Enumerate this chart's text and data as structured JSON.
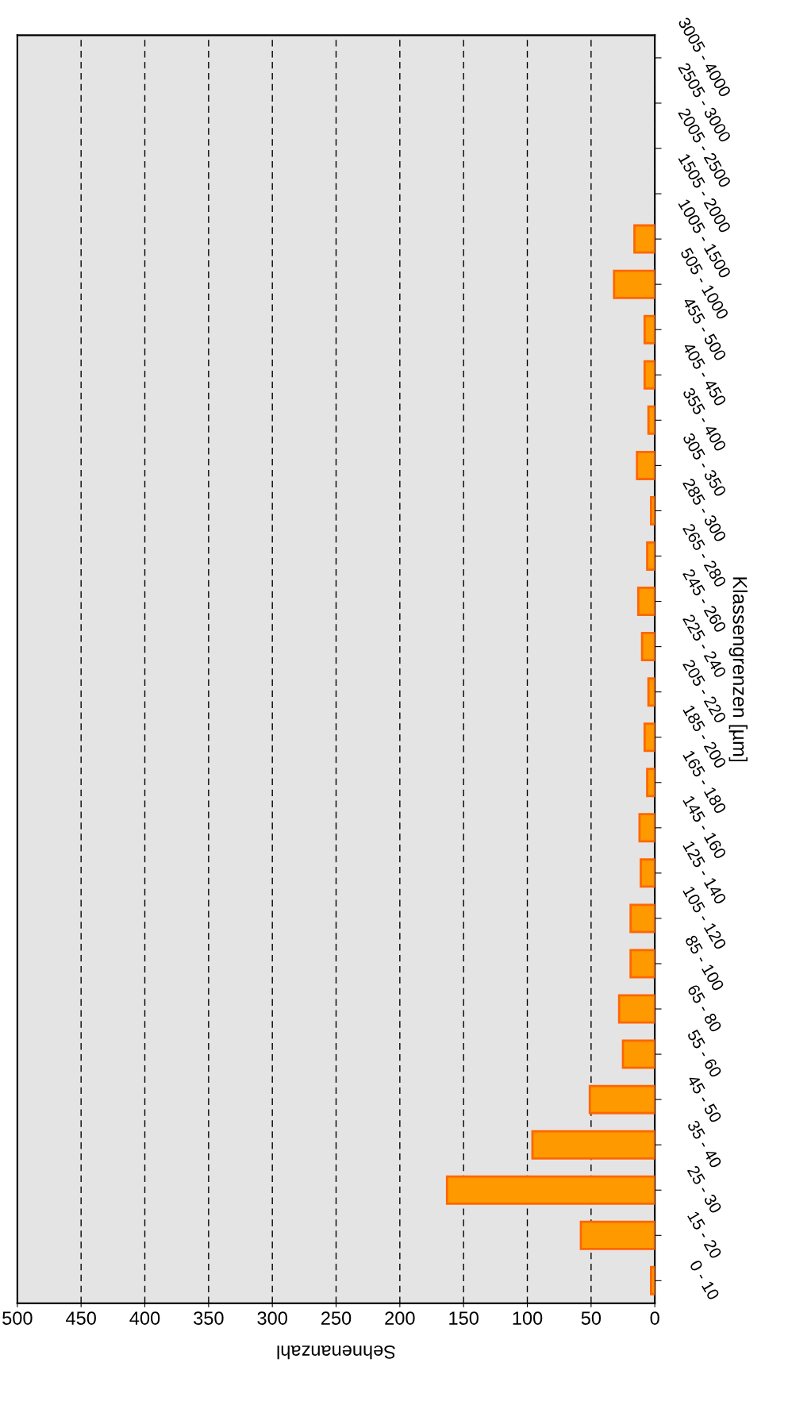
{
  "chart_data": {
    "type": "bar",
    "orientation": "horizontal",
    "xlabel": "Sehnenanzahl",
    "ylabel": "Klassengrenzen [µm]",
    "categories": [
      "3005 - 4000",
      "2505 - 3000",
      "2005 - 2500",
      "1505 - 2000",
      "1005 - 1500",
      "505 - 1000",
      "455 - 500",
      "405 - 450",
      "355 - 400",
      "305 - 350",
      "285 - 300",
      "265 - 280",
      "245 - 260",
      "225 - 240",
      "205 - 220",
      "185 - 200",
      "165 - 180",
      "145 - 160",
      "125 - 140",
      "105 - 120",
      "85 - 100",
      "65 - 80",
      "55 - 60",
      "45 - 50",
      "35 - 40",
      "25 - 30",
      "15 - 20",
      "0 - 10"
    ],
    "values": [
      null,
      null,
      null,
      null,
      16,
      32,
      8,
      8,
      5,
      14,
      3,
      6,
      13,
      10,
      5,
      8,
      6,
      12,
      11,
      19,
      19,
      28,
      25,
      51,
      96,
      163,
      58,
      3
    ],
    "color": "#ff9900",
    "xlim": [
      500,
      0
    ],
    "xticks": [
      0,
      50,
      100,
      150,
      200,
      250,
      300,
      350,
      400,
      450,
      500
    ],
    "grid": "x",
    "legend": false
  }
}
